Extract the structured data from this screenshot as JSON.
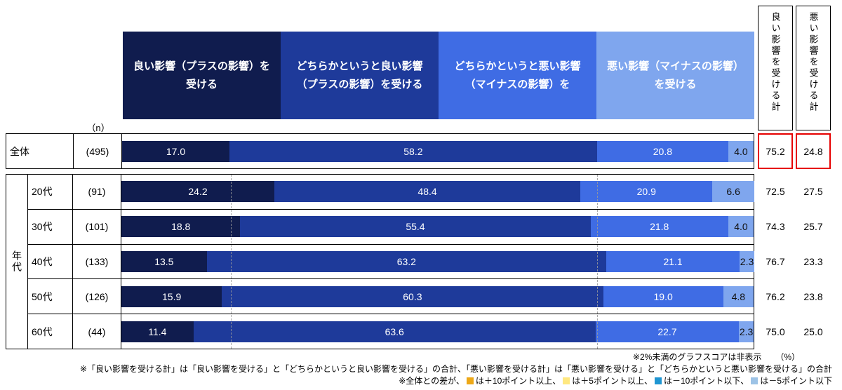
{
  "chart_data": {
    "type": "bar",
    "stacked": true,
    "orientation": "horizontal",
    "unit": "%",
    "xlim": [
      0,
      100
    ],
    "series": [
      {
        "name": "良い影響（プラスの影響）を\n受ける",
        "color": "#101c4e",
        "text_color": "#ffffff"
      },
      {
        "name": "どちらかというと\n良い影響（プラスの影響）を\n受ける",
        "color": "#1e3a9a",
        "text_color": "#ffffff"
      },
      {
        "name": "どちらかというと\n悪い影響（マイナスの影響）\nを",
        "color": "#3f6ce4",
        "text_color": "#ffffff"
      },
      {
        "name": "悪い影響（マイナスの影響）を\n受ける",
        "color": "#7fa6ee",
        "text_color": "#111111"
      }
    ],
    "group_label": "年代",
    "rows": [
      {
        "group": "全体",
        "label": "全体",
        "n": "(495)",
        "values": [
          17.0,
          58.2,
          20.8,
          4.0
        ],
        "good_total": "75.2",
        "bad_total": "24.8",
        "highlight": true
      },
      {
        "group": "年代",
        "label": "20代",
        "n": "(91)",
        "values": [
          24.2,
          48.4,
          20.9,
          6.6
        ],
        "good_total": "72.5",
        "bad_total": "27.5",
        "highlight": false
      },
      {
        "group": "年代",
        "label": "30代",
        "n": "(101)",
        "values": [
          18.8,
          55.4,
          21.8,
          4.0
        ],
        "good_total": "74.3",
        "bad_total": "25.7",
        "highlight": false
      },
      {
        "group": "年代",
        "label": "40代",
        "n": "(133)",
        "values": [
          13.5,
          63.2,
          21.1,
          2.3
        ],
        "good_total": "76.7",
        "bad_total": "23.3",
        "highlight": false
      },
      {
        "group": "年代",
        "label": "50代",
        "n": "(126)",
        "values": [
          15.9,
          60.3,
          19.0,
          4.8
        ],
        "good_total": "76.2",
        "bad_total": "23.8",
        "highlight": false
      },
      {
        "group": "年代",
        "label": "60代",
        "n": "(44)",
        "values": [
          11.4,
          63.6,
          22.7,
          2.3
        ],
        "good_total": "75.0",
        "bad_total": "25.0",
        "highlight": false
      }
    ],
    "reference_lines": [
      17.0,
      75.2
    ],
    "min_shown_value": 2
  },
  "headers": {
    "n": "（n）",
    "good_total": "良い影響を受ける計",
    "bad_total": "悪い影響を受ける計"
  },
  "notes": {
    "line1": "※2%未満のグラフスコアは非表示",
    "line1_unit": "（%）",
    "line2": "※「良い影響を受ける計」は「良い影響を受ける」と「どちらかというと良い影響を受ける」の合計、「悪い影響を受ける計」は「悪い影響を受ける」と「どちらかというと悪い影響を受ける」の合計",
    "line3_parts": [
      {
        "text": "※全体との差が、"
      },
      {
        "swatch": "#eda817"
      },
      {
        "text": "は＋10ポイント以上、"
      },
      {
        "swatch": "#ffe880"
      },
      {
        "text": "は＋5ポイント以上、"
      },
      {
        "swatch": "#1f96d2"
      },
      {
        "text": "は－10ポイント以下、"
      },
      {
        "swatch": "#9dc3e6"
      },
      {
        "text": "は－5ポイント以下"
      }
    ]
  },
  "highlight_color": "#e60000"
}
